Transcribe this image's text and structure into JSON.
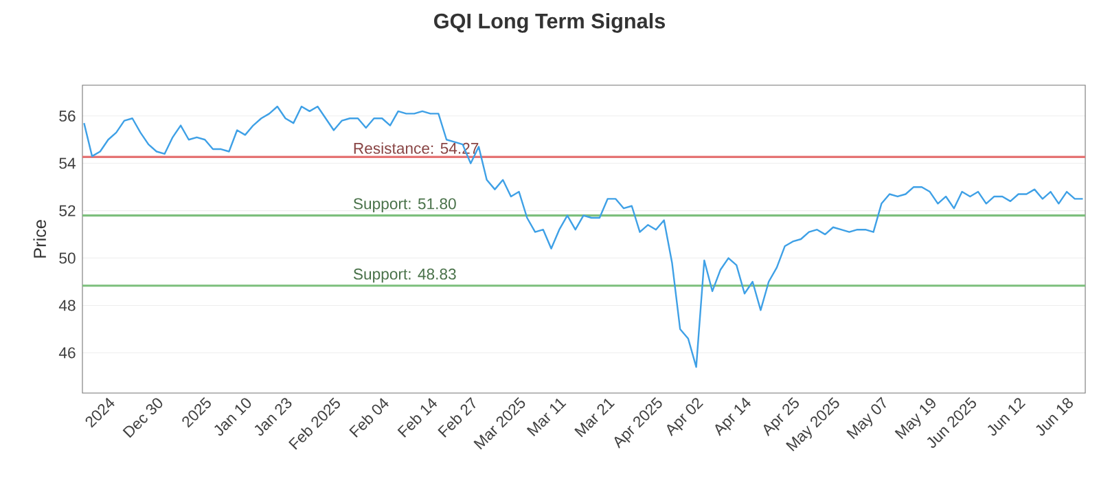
{
  "chart_data": {
    "type": "line",
    "title": "GQI Long Term Signals",
    "ylabel": "Price",
    "categories": [
      null,
      null,
      null,
      "2024",
      null,
      null,
      null,
      null,
      null,
      "Dec 30",
      null,
      null,
      null,
      null,
      null,
      "2025",
      null,
      null,
      null,
      null,
      "Jan 10",
      null,
      null,
      null,
      null,
      "Jan 23",
      null,
      null,
      null,
      null,
      null,
      "Feb 2025",
      null,
      null,
      null,
      null,
      null,
      "Feb 04",
      null,
      null,
      null,
      null,
      null,
      "Feb 14",
      null,
      null,
      null,
      null,
      "Feb 27",
      null,
      null,
      null,
      null,
      null,
      "Mar 2025",
      null,
      null,
      null,
      null,
      "Mar 11",
      null,
      null,
      null,
      null,
      null,
      "Mar 21",
      null,
      null,
      null,
      null,
      null,
      "Apr 2025",
      null,
      null,
      null,
      null,
      "Apr 02",
      null,
      null,
      null,
      null,
      null,
      "Apr 14",
      null,
      null,
      null,
      null,
      null,
      "Apr 25",
      null,
      null,
      null,
      null,
      "May 2025",
      null,
      null,
      null,
      null,
      null,
      "May 07",
      null,
      null,
      null,
      null,
      null,
      "May 19",
      null,
      null,
      null,
      null,
      "Jun 2025",
      null,
      null,
      null,
      null,
      null,
      "Jun 12",
      null,
      null,
      null,
      null,
      null,
      "Jun 18",
      null,
      null
    ],
    "series": [
      {
        "color": "#3ea0e6",
        "values": [
          55.7,
          54.3,
          54.5,
          55.0,
          55.3,
          55.8,
          55.9,
          55.3,
          54.8,
          54.5,
          54.4,
          55.1,
          55.6,
          55.0,
          55.1,
          55.0,
          54.6,
          54.6,
          54.5,
          55.4,
          55.2,
          55.6,
          55.9,
          56.1,
          56.4,
          55.9,
          55.7,
          56.4,
          56.2,
          56.4,
          55.9,
          55.4,
          55.8,
          55.9,
          55.9,
          55.5,
          55.9,
          55.9,
          55.6,
          56.2,
          56.1,
          56.1,
          56.2,
          56.1,
          56.1,
          55.0,
          54.9,
          54.8,
          54.0,
          54.7,
          53.3,
          52.9,
          53.3,
          52.6,
          52.8,
          51.7,
          51.1,
          51.2,
          50.4,
          51.2,
          51.8,
          51.2,
          51.8,
          51.7,
          51.7,
          52.5,
          52.5,
          52.1,
          52.2,
          51.1,
          51.4,
          51.2,
          51.6,
          49.8,
          47.0,
          46.6,
          45.4,
          49.9,
          48.6,
          49.5,
          50.0,
          49.7,
          48.5,
          49.0,
          47.8,
          49.0,
          49.6,
          50.5,
          50.7,
          50.8,
          51.1,
          51.2,
          51.0,
          51.3,
          51.2,
          51.1,
          51.2,
          51.2,
          51.1,
          52.3,
          52.7,
          52.6,
          52.7,
          53.0,
          53.0,
          52.8,
          52.3,
          52.6,
          52.1,
          52.8,
          52.6,
          52.8,
          52.3,
          52.6,
          52.6,
          52.4,
          52.7,
          52.7,
          52.9,
          52.5,
          52.8,
          52.3,
          52.8,
          52.5,
          52.5
        ]
      }
    ],
    "ylim": [
      44.3,
      57.3
    ],
    "yticks": [
      46,
      48,
      50,
      52,
      54,
      56
    ],
    "grid": "y",
    "ref_lines": [
      {
        "axis": "y",
        "value": 54.27,
        "label": "Resistance: 54.27",
        "color": "#e57373"
      },
      {
        "axis": "y",
        "value": 51.8,
        "label": "Support: 51.80",
        "color": "#7cbf7c"
      },
      {
        "axis": "y",
        "value": 48.83,
        "label": "Support: 48.83",
        "color": "#7cbf7c"
      }
    ]
  }
}
